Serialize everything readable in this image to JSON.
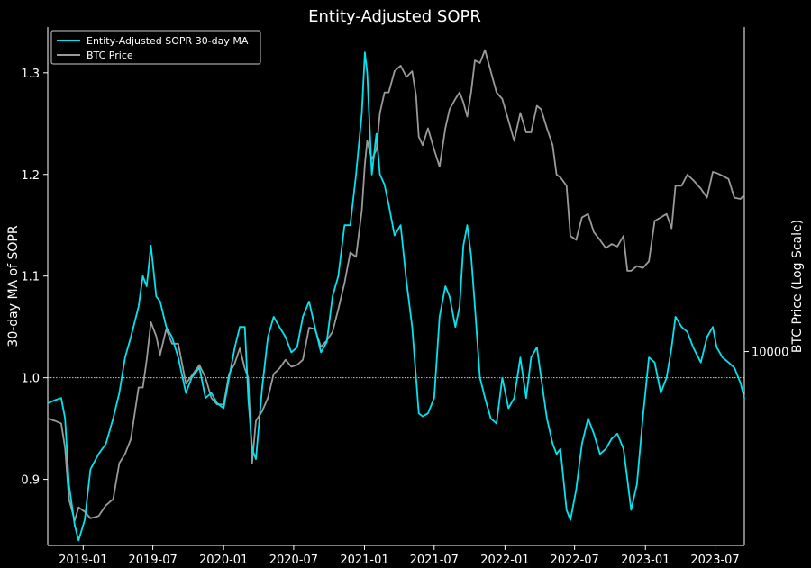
{
  "chart_data": {
    "type": "line",
    "title": "Entity-Adjusted SOPR",
    "ylabel": "30-day MA of SOPR",
    "y2label": "BTC Price (Log Scale)",
    "xlabel": "",
    "ylim": [
      0.835,
      1.345
    ],
    "y2lim": [
      3000,
      75000
    ],
    "y2scale": "log",
    "x_ticks": [
      "2019-01",
      "2019-07",
      "2020-01",
      "2020-07",
      "2021-01",
      "2021-07",
      "2022-01",
      "2022-07",
      "2023-01",
      "2023-07"
    ],
    "y_ticks": [
      "0.9",
      "1.0",
      "1.1",
      "1.2",
      "1.3"
    ],
    "y2_ticks": [
      "10000"
    ],
    "grid": false,
    "reference_line": {
      "y": 1.0,
      "style": "dotted",
      "color": "#cccccc"
    },
    "legend": {
      "placement": "top-left",
      "entries": [
        "Entity-Adjusted SOPR 30-day MA",
        "BTC Price"
      ]
    },
    "series": [
      {
        "name": "Entity-Adjusted SOPR 30-day MA",
        "axis": "left",
        "color": "#00e5ee",
        "x": [
          "2018-10-01",
          "2018-10-20",
          "2018-11-05",
          "2018-11-15",
          "2018-11-25",
          "2018-12-10",
          "2018-12-20",
          "2019-01-05",
          "2019-01-20",
          "2019-02-10",
          "2019-03-01",
          "2019-03-20",
          "2019-04-05",
          "2019-04-20",
          "2019-05-05",
          "2019-05-25",
          "2019-06-05",
          "2019-06-15",
          "2019-06-26",
          "2019-07-10",
          "2019-07-20",
          "2019-08-05",
          "2019-08-20",
          "2019-09-05",
          "2019-09-25",
          "2019-10-10",
          "2019-10-30",
          "2019-11-15",
          "2019-11-30",
          "2019-12-15",
          "2020-01-01",
          "2020-01-15",
          "2020-01-30",
          "2020-02-12",
          "2020-02-25",
          "2020-03-05",
          "2020-03-15",
          "2020-03-25",
          "2020-04-10",
          "2020-04-25",
          "2020-05-10",
          "2020-05-25",
          "2020-06-10",
          "2020-06-25",
          "2020-07-10",
          "2020-07-25",
          "2020-08-10",
          "2020-08-25",
          "2020-09-10",
          "2020-09-25",
          "2020-10-10",
          "2020-10-25",
          "2020-11-10",
          "2020-11-25",
          "2020-12-10",
          "2020-12-25",
          "2021-01-02",
          "2021-01-08",
          "2021-01-20",
          "2021-02-01",
          "2021-02-10",
          "2021-02-22",
          "2021-03-05",
          "2021-03-20",
          "2021-04-05",
          "2021-04-20",
          "2021-05-05",
          "2021-05-15",
          "2021-05-22",
          "2021-06-01",
          "2021-06-15",
          "2021-07-01",
          "2021-07-15",
          "2021-07-30",
          "2021-08-10",
          "2021-08-25",
          "2021-09-05",
          "2021-09-15",
          "2021-09-25",
          "2021-10-05",
          "2021-10-15",
          "2021-10-28",
          "2021-11-10",
          "2021-11-25",
          "2021-12-10",
          "2021-12-25",
          "2022-01-10",
          "2022-01-25",
          "2022-02-10",
          "2022-02-25",
          "2022-03-10",
          "2022-03-25",
          "2022-04-05",
          "2022-04-20",
          "2022-05-05",
          "2022-05-15",
          "2022-05-25",
          "2022-06-10",
          "2022-06-20",
          "2022-07-05",
          "2022-07-20",
          "2022-08-05",
          "2022-08-20",
          "2022-09-05",
          "2022-09-20",
          "2022-10-05",
          "2022-10-20",
          "2022-11-05",
          "2022-11-15",
          "2022-11-25",
          "2022-12-10",
          "2022-12-25",
          "2023-01-10",
          "2023-01-25",
          "2023-02-10",
          "2023-02-25",
          "2023-03-10",
          "2023-03-20",
          "2023-04-05",
          "2023-04-20",
          "2023-05-05",
          "2023-05-25",
          "2023-06-10",
          "2023-06-25",
          "2023-07-05",
          "2023-07-20",
          "2023-08-05",
          "2023-08-20",
          "2023-09-05",
          "2023-09-15"
        ],
        "values": [
          0.975,
          0.978,
          0.98,
          0.96,
          0.895,
          0.855,
          0.84,
          0.86,
          0.91,
          0.925,
          0.935,
          0.96,
          0.985,
          1.02,
          1.04,
          1.07,
          1.1,
          1.09,
          1.13,
          1.08,
          1.075,
          1.05,
          1.04,
          1.02,
          0.985,
          1.0,
          1.01,
          0.98,
          0.985,
          0.975,
          0.97,
          1.0,
          1.03,
          1.05,
          1.05,
          0.98,
          0.93,
          0.92,
          0.99,
          1.04,
          1.06,
          1.05,
          1.04,
          1.025,
          1.03,
          1.06,
          1.075,
          1.05,
          1.025,
          1.035,
          1.08,
          1.1,
          1.15,
          1.15,
          1.2,
          1.26,
          1.32,
          1.3,
          1.2,
          1.24,
          1.2,
          1.19,
          1.17,
          1.14,
          1.15,
          1.095,
          1.05,
          1.0,
          0.965,
          0.962,
          0.965,
          0.98,
          1.06,
          1.09,
          1.08,
          1.05,
          1.07,
          1.13,
          1.15,
          1.12,
          1.07,
          1.0,
          0.98,
          0.96,
          0.955,
          1.0,
          0.97,
          0.98,
          1.02,
          0.98,
          1.02,
          1.03,
          1.0,
          0.96,
          0.935,
          0.925,
          0.93,
          0.87,
          0.86,
          0.89,
          0.935,
          0.96,
          0.945,
          0.925,
          0.93,
          0.94,
          0.945,
          0.93,
          0.9,
          0.87,
          0.895,
          0.96,
          1.02,
          1.015,
          0.985,
          1.0,
          1.03,
          1.06,
          1.05,
          1.045,
          1.03,
          1.015,
          1.04,
          1.05,
          1.03,
          1.02,
          1.015,
          1.01,
          0.995,
          0.98
        ]
      },
      {
        "name": "BTC Price",
        "axis": "right",
        "color": "#9a9a9a",
        "x": [
          "2018-10-01",
          "2018-10-20",
          "2018-11-05",
          "2018-11-15",
          "2018-11-25",
          "2018-12-10",
          "2018-12-20",
          "2019-01-05",
          "2019-01-20",
          "2019-02-10",
          "2019-03-01",
          "2019-03-20",
          "2019-04-05",
          "2019-04-20",
          "2019-05-05",
          "2019-05-25",
          "2019-06-05",
          "2019-06-15",
          "2019-06-26",
          "2019-07-10",
          "2019-07-20",
          "2019-08-05",
          "2019-08-20",
          "2019-09-05",
          "2019-09-25",
          "2019-10-10",
          "2019-10-30",
          "2019-11-15",
          "2019-11-30",
          "2019-12-15",
          "2020-01-01",
          "2020-01-15",
          "2020-01-30",
          "2020-02-12",
          "2020-02-25",
          "2020-03-05",
          "2020-03-15",
          "2020-03-25",
          "2020-04-10",
          "2020-04-25",
          "2020-05-10",
          "2020-05-25",
          "2020-06-10",
          "2020-06-25",
          "2020-07-10",
          "2020-07-25",
          "2020-08-10",
          "2020-08-25",
          "2020-09-10",
          "2020-09-25",
          "2020-10-10",
          "2020-10-25",
          "2020-11-10",
          "2020-11-25",
          "2020-12-10",
          "2020-12-25",
          "2021-01-02",
          "2021-01-08",
          "2021-01-20",
          "2021-02-01",
          "2021-02-10",
          "2021-02-22",
          "2021-03-05",
          "2021-03-20",
          "2021-04-05",
          "2021-04-20",
          "2021-05-05",
          "2021-05-15",
          "2021-05-22",
          "2021-06-01",
          "2021-06-15",
          "2021-07-01",
          "2021-07-15",
          "2021-07-30",
          "2021-08-10",
          "2021-08-25",
          "2021-09-05",
          "2021-09-15",
          "2021-09-25",
          "2021-10-05",
          "2021-10-15",
          "2021-10-28",
          "2021-11-10",
          "2021-11-25",
          "2021-12-10",
          "2021-12-25",
          "2022-01-10",
          "2022-01-25",
          "2022-02-10",
          "2022-02-25",
          "2022-03-10",
          "2022-03-25",
          "2022-04-05",
          "2022-04-20",
          "2022-05-05",
          "2022-05-15",
          "2022-05-25",
          "2022-06-10",
          "2022-06-20",
          "2022-07-05",
          "2022-07-20",
          "2022-08-05",
          "2022-08-20",
          "2022-09-05",
          "2022-09-20",
          "2022-10-05",
          "2022-10-20",
          "2022-11-05",
          "2022-11-15",
          "2022-11-25",
          "2022-12-10",
          "2022-12-25",
          "2023-01-10",
          "2023-01-25",
          "2023-02-10",
          "2023-02-25",
          "2023-03-10",
          "2023-03-20",
          "2023-04-05",
          "2023-04-20",
          "2023-05-05",
          "2023-05-25",
          "2023-06-10",
          "2023-06-25",
          "2023-07-05",
          "2023-07-20",
          "2023-08-05",
          "2023-08-20",
          "2023-09-05",
          "2023-09-15"
        ],
        "values": [
          6600,
          6500,
          6400,
          5500,
          4000,
          3500,
          3800,
          3700,
          3550,
          3600,
          3850,
          4000,
          5000,
          5300,
          5800,
          8000,
          8000,
          9500,
          12000,
          11000,
          9800,
          11500,
          10500,
          10500,
          8200,
          8600,
          9200,
          8500,
          7500,
          7200,
          7200,
          8700,
          9300,
          10200,
          9000,
          8500,
          5000,
          6500,
          6900,
          7500,
          8700,
          9000,
          9500,
          9100,
          9200,
          9500,
          11600,
          11500,
          10300,
          10700,
          11300,
          13000,
          15300,
          18500,
          18000,
          24000,
          32000,
          37000,
          33000,
          35000,
          44000,
          50000,
          50000,
          57000,
          59000,
          55000,
          57000,
          49000,
          38000,
          36000,
          40000,
          35000,
          31500,
          40000,
          45000,
          48000,
          50000,
          47000,
          43000,
          50000,
          61000,
          60000,
          65000,
          57000,
          50000,
          48000,
          42000,
          37000,
          44000,
          39000,
          39000,
          46000,
          45000,
          40000,
          36000,
          30000,
          29500,
          28000,
          20500,
          20000,
          23000,
          23500,
          21000,
          20000,
          19000,
          19500,
          19200,
          20500,
          16500,
          16500,
          17000,
          16800,
          17500,
          22500,
          23000,
          23500,
          21500,
          28000,
          28000,
          30000,
          29000,
          27500,
          26000,
          30500,
          30300,
          29800,
          29200,
          26000,
          25800,
          26400
        ]
      }
    ]
  }
}
